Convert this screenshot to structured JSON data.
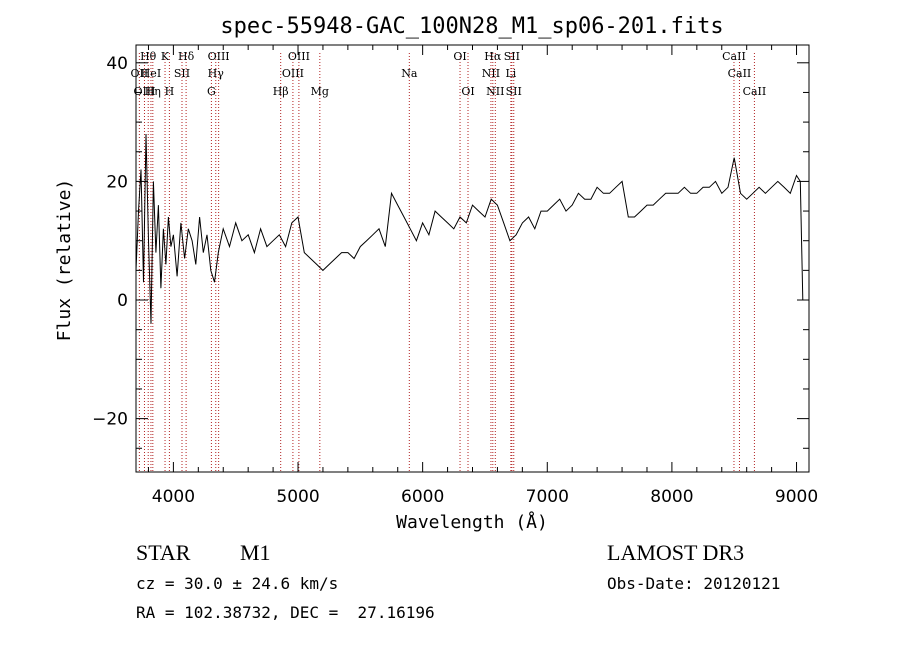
{
  "chart_data": {
    "type": "line",
    "title": "spec-55948-GAC_100N28_M1_sp06-201.fits",
    "xlabel": "Wavelength (Å)",
    "ylabel": "Flux (relative)",
    "xlim": [
      3700,
      9100
    ],
    "ylim": [
      -29,
      43
    ],
    "xticks": [
      4000,
      5000,
      6000,
      7000,
      8000,
      9000
    ],
    "yticks": [
      -20,
      0,
      20,
      40
    ],
    "line_color": "#000000",
    "marker_color": "#b22222",
    "series": [
      {
        "name": "spectrum",
        "x": [
          3700,
          3720,
          3740,
          3760,
          3780,
          3800,
          3820,
          3840,
          3860,
          3880,
          3900,
          3920,
          3940,
          3960,
          3980,
          4000,
          4030,
          4060,
          4090,
          4120,
          4150,
          4180,
          4210,
          4240,
          4270,
          4300,
          4330,
          4360,
          4400,
          4450,
          4500,
          4550,
          4600,
          4650,
          4700,
          4750,
          4800,
          4850,
          4900,
          4950,
          5000,
          5050,
          5100,
          5150,
          5200,
          5250,
          5300,
          5350,
          5400,
          5450,
          5500,
          5550,
          5600,
          5650,
          5700,
          5750,
          5800,
          5850,
          5900,
          5950,
          6000,
          6050,
          6100,
          6150,
          6200,
          6250,
          6300,
          6350,
          6400,
          6450,
          6500,
          6550,
          6600,
          6650,
          6700,
          6750,
          6800,
          6850,
          6900,
          6950,
          7000,
          7050,
          7100,
          7150,
          7200,
          7250,
          7300,
          7350,
          7400,
          7450,
          7500,
          7550,
          7600,
          7650,
          7700,
          7750,
          7800,
          7850,
          7900,
          7950,
          8000,
          8050,
          8100,
          8150,
          8200,
          8250,
          8300,
          8350,
          8400,
          8450,
          8500,
          8550,
          8600,
          8650,
          8700,
          8750,
          8800,
          8850,
          8900,
          8950,
          9000,
          9030,
          9050
        ],
        "y": [
          5,
          15,
          22,
          3,
          28,
          10,
          -4,
          20,
          8,
          16,
          2,
          12,
          6,
          14,
          9,
          11,
          4,
          13,
          7,
          12,
          10,
          6,
          14,
          8,
          11,
          5,
          3,
          8,
          12,
          9,
          13,
          10,
          11,
          8,
          12,
          9,
          10,
          11,
          9,
          13,
          14,
          8,
          7,
          6,
          5,
          6,
          7,
          8,
          8,
          7,
          9,
          10,
          11,
          12,
          9,
          18,
          16,
          14,
          12,
          10,
          13,
          11,
          15,
          14,
          13,
          12,
          14,
          13,
          16,
          15,
          14,
          17,
          16,
          13,
          10,
          11,
          13,
          14,
          12,
          15,
          15,
          16,
          17,
          15,
          16,
          18,
          17,
          17,
          19,
          18,
          18,
          19,
          20,
          14,
          14,
          15,
          16,
          16,
          17,
          18,
          18,
          18,
          19,
          18,
          18,
          19,
          19,
          20,
          18,
          19,
          24,
          18,
          17,
          18,
          19,
          18,
          19,
          20,
          19,
          18,
          21,
          20,
          0
        ]
      }
    ],
    "lines": [
      {
        "name": "OII",
        "wavelength": 3727,
        "row": 2,
        "label": "OII"
      },
      {
        "name": "H-theta",
        "wavelength": 3798,
        "row": 1,
        "label": "Hθ"
      },
      {
        "name": "OIII",
        "wavelength": 3768,
        "row": 3,
        "label": "OIII"
      },
      {
        "name": "HeI",
        "wavelength": 3820,
        "row": 2,
        "label": "HeI"
      },
      {
        "name": "H-eta",
        "wavelength": 3835,
        "row": 3,
        "label": "Hη"
      },
      {
        "name": "K",
        "wavelength": 3933,
        "row": 1,
        "label": "K"
      },
      {
        "name": "SII",
        "wavelength": 4069,
        "row": 2,
        "label": "SII"
      },
      {
        "name": "H",
        "wavelength": 3968,
        "row": 3,
        "label": "H"
      },
      {
        "name": "H-delta",
        "wavelength": 4102,
        "row": 1,
        "label": "Hδ"
      },
      {
        "name": "OIII",
        "wavelength": 4363,
        "row": 1,
        "label": "OIII"
      },
      {
        "name": "H-gamma",
        "wavelength": 4340,
        "row": 2,
        "label": "Hγ"
      },
      {
        "name": "G",
        "wavelength": 4305,
        "row": 3,
        "label": "G"
      },
      {
        "name": "H-beta",
        "wavelength": 4861,
        "row": 3,
        "label": "Hβ"
      },
      {
        "name": "OIII",
        "wavelength": 5007,
        "row": 1,
        "label": "OIII"
      },
      {
        "name": "OIII",
        "wavelength": 4959,
        "row": 2,
        "label": "OIII"
      },
      {
        "name": "Mg",
        "wavelength": 5175,
        "row": 3,
        "label": "Mg"
      },
      {
        "name": "Na",
        "wavelength": 5893,
        "row": 2,
        "label": "Na"
      },
      {
        "name": "OI",
        "wavelength": 6300,
        "row": 1,
        "label": "OI"
      },
      {
        "name": "OI",
        "wavelength": 6364,
        "row": 3,
        "label": "OI"
      },
      {
        "name": "H-alpha",
        "wavelength": 6563,
        "row": 1,
        "label": "Hα"
      },
      {
        "name": "SII",
        "wavelength": 6716,
        "row": 1,
        "label": "SII"
      },
      {
        "name": "NII",
        "wavelength": 6548,
        "row": 2,
        "label": "NII"
      },
      {
        "name": "Li",
        "wavelength": 6708,
        "row": 2,
        "label": "Li"
      },
      {
        "name": "NII",
        "wavelength": 6583,
        "row": 3,
        "label": "NII"
      },
      {
        "name": "SII",
        "wavelength": 6731,
        "row": 3,
        "label": "SII"
      },
      {
        "name": "CaII",
        "wavelength": 8498,
        "row": 1,
        "label": "CaII"
      },
      {
        "name": "CaII",
        "wavelength": 8542,
        "row": 2,
        "label": "CaII"
      },
      {
        "name": "CaII",
        "wavelength": 8662,
        "row": 3,
        "label": "CaII"
      }
    ]
  },
  "info": {
    "object_type": "STAR",
    "subclass": "M1",
    "survey": "LAMOST DR3",
    "redshift": "cz = 30.0 ± 24.6 km/s",
    "obs_date": "Obs-Date: 20120121",
    "coords": "RA = 102.38732, DEC =  27.16196"
  }
}
